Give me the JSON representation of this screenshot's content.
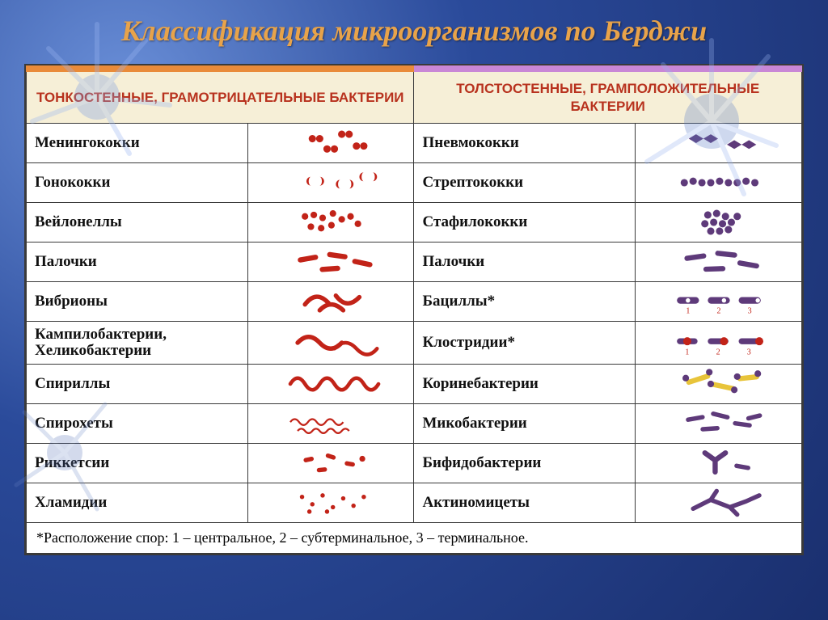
{
  "title": {
    "text": "Классификация микроорганизмов  по Берджи",
    "color": "#e8a34a",
    "fontsize": 36
  },
  "background": {
    "gradient_from": "#6a8fd8",
    "gradient_mid": "#2a4a9a",
    "gradient_to": "#1a2f6e"
  },
  "table": {
    "border_color": "#3a3a3a",
    "header_left": {
      "title": "ТОНКОСТЕННЫЕ, ГРАМОТРИЦАТЕЛЬНЫЕ БАКТЕРИИ",
      "bg": "#f6efd7",
      "text_color": "#b8321e",
      "accent_bar": "#e98b3a"
    },
    "header_right": {
      "title": "ТОЛСТОСТЕННЫЕ, ГРАМПОЛОЖИТЕЛЬНЫЕ БАКТЕРИИ",
      "bg": "#f6efd7",
      "text_color": "#b8321e",
      "accent_bar": "#c987d6"
    },
    "row_bg": "#ffffff",
    "name_color": "#111111",
    "neg_color": "#c22318",
    "pos_color": "#5e3a7a",
    "pos_accent": "#e8c43a",
    "rows_left": [
      {
        "name": "Менингококки",
        "icon": "diplococci"
      },
      {
        "name": "Гонококки",
        "icon": "diplococci_bean"
      },
      {
        "name": "Вейлонеллы",
        "icon": "cocci_cluster"
      },
      {
        "name": "Палочки",
        "icon": "rods"
      },
      {
        "name": "Вибрионы",
        "icon": "vibrio"
      },
      {
        "name": "Кампилобактерии, Хеликобактерии",
        "icon": "campylo"
      },
      {
        "name": "Спириллы",
        "icon": "spirilla"
      },
      {
        "name": "Спирохеты",
        "icon": "spirochete"
      },
      {
        "name": "Риккетсии",
        "icon": "rickettsia"
      },
      {
        "name": "Хламидии",
        "icon": "chlamydia"
      }
    ],
    "rows_right": [
      {
        "name": "Пневмококки",
        "icon": "diplococci_lance"
      },
      {
        "name": "Стрептококки",
        "icon": "strepto_chain"
      },
      {
        "name": "Стафилококки",
        "icon": "staph_cluster"
      },
      {
        "name": "Палочки",
        "icon": "rods_pos"
      },
      {
        "name": "Бациллы*",
        "icon": "bacilli_spore"
      },
      {
        "name": "Клостридии*",
        "icon": "clostridia_spore"
      },
      {
        "name": "Коринебактерии",
        "icon": "coryne"
      },
      {
        "name": "Микобактерии",
        "icon": "myco"
      },
      {
        "name": "Бифидобактерии",
        "icon": "bifido"
      },
      {
        "name": "Актиномицеты",
        "icon": "actino"
      }
    ],
    "spore_labels": [
      "1",
      "2",
      "3"
    ],
    "spore_label_color": "#c22318",
    "footnote": "*Расположение спор: 1 – центральное,  2 – субтерминальное, 3 – терминальное."
  }
}
